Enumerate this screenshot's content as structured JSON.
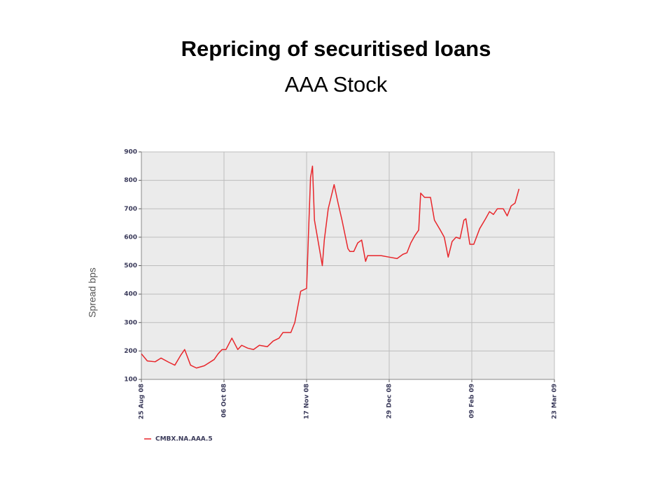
{
  "chart_data": {
    "type": "line",
    "title": "Repricing of securitised loans",
    "subtitle": "AAA Stock",
    "y_label": "Spread bps",
    "x": [
      "2008-08-25",
      "2008-08-28",
      "2008-09-01",
      "2008-09-04",
      "2008-09-08",
      "2008-09-11",
      "2008-09-14",
      "2008-09-16",
      "2008-09-19",
      "2008-09-22",
      "2008-09-26",
      "2008-10-01",
      "2008-10-03",
      "2008-10-05",
      "2008-10-07",
      "2008-10-10",
      "2008-10-13",
      "2008-10-15",
      "2008-10-18",
      "2008-10-21",
      "2008-10-24",
      "2008-10-28",
      "2008-10-31",
      "2008-11-03",
      "2008-11-05",
      "2008-11-09",
      "2008-11-11",
      "2008-11-14",
      "2008-11-17",
      "2008-11-18",
      "2008-11-19",
      "2008-11-20",
      "2008-11-21",
      "2008-11-23",
      "2008-11-25",
      "2008-11-26",
      "2008-11-28",
      "2008-12-01",
      "2008-12-03",
      "2008-12-05",
      "2008-12-08",
      "2008-12-09",
      "2008-12-11",
      "2008-12-13",
      "2008-12-15",
      "2008-12-17",
      "2008-12-18",
      "2008-12-22",
      "2008-12-25",
      "2008-12-29",
      "2009-01-02",
      "2009-01-05",
      "2009-01-07",
      "2009-01-09",
      "2009-01-11",
      "2009-01-13",
      "2009-01-14",
      "2009-01-16",
      "2009-01-19",
      "2009-01-21",
      "2009-01-24",
      "2009-01-26",
      "2009-01-28",
      "2009-01-30",
      "2009-02-01",
      "2009-02-03",
      "2009-02-05",
      "2009-02-06",
      "2009-02-08",
      "2009-02-10",
      "2009-02-13",
      "2009-02-16",
      "2009-02-18",
      "2009-02-20",
      "2009-02-22",
      "2009-02-25",
      "2009-02-27",
      "2009-03-01",
      "2009-03-03",
      "2009-03-05"
    ],
    "series": [
      {
        "name": "CMBX.NA.AAA.5",
        "color": "#e8262b",
        "values": [
          190,
          165,
          162,
          175,
          160,
          150,
          185,
          205,
          150,
          140,
          148,
          170,
          190,
          205,
          205,
          245,
          205,
          220,
          210,
          205,
          220,
          215,
          235,
          245,
          265,
          265,
          300,
          410,
          420,
          620,
          810,
          850,
          660,
          580,
          500,
          590,
          700,
          785,
          720,
          660,
          560,
          550,
          550,
          580,
          590,
          515,
          535,
          535,
          535,
          530,
          525,
          540,
          545,
          580,
          605,
          625,
          755,
          740,
          740,
          660,
          625,
          600,
          530,
          585,
          600,
          595,
          660,
          665,
          575,
          575,
          630,
          665,
          690,
          680,
          700,
          700,
          675,
          710,
          720,
          770
        ]
      }
    ],
    "xlim": [
      "2008-08-25",
      "2009-03-23"
    ],
    "xticks": [
      {
        "value": "2008-08-25",
        "label": "25 Aug 08"
      },
      {
        "value": "2008-10-06",
        "label": "06 Oct 08"
      },
      {
        "value": "2008-11-17",
        "label": "17 Nov 08"
      },
      {
        "value": "2008-12-29",
        "label": "29 Dec 08"
      },
      {
        "value": "2009-02-09",
        "label": "09 Feb 09"
      },
      {
        "value": "2009-03-23",
        "label": "23 Mar 09"
      }
    ],
    "ylim": [
      100,
      900
    ],
    "yticks": [
      100,
      200,
      300,
      400,
      500,
      600,
      700,
      800,
      900
    ],
    "grid": true
  }
}
